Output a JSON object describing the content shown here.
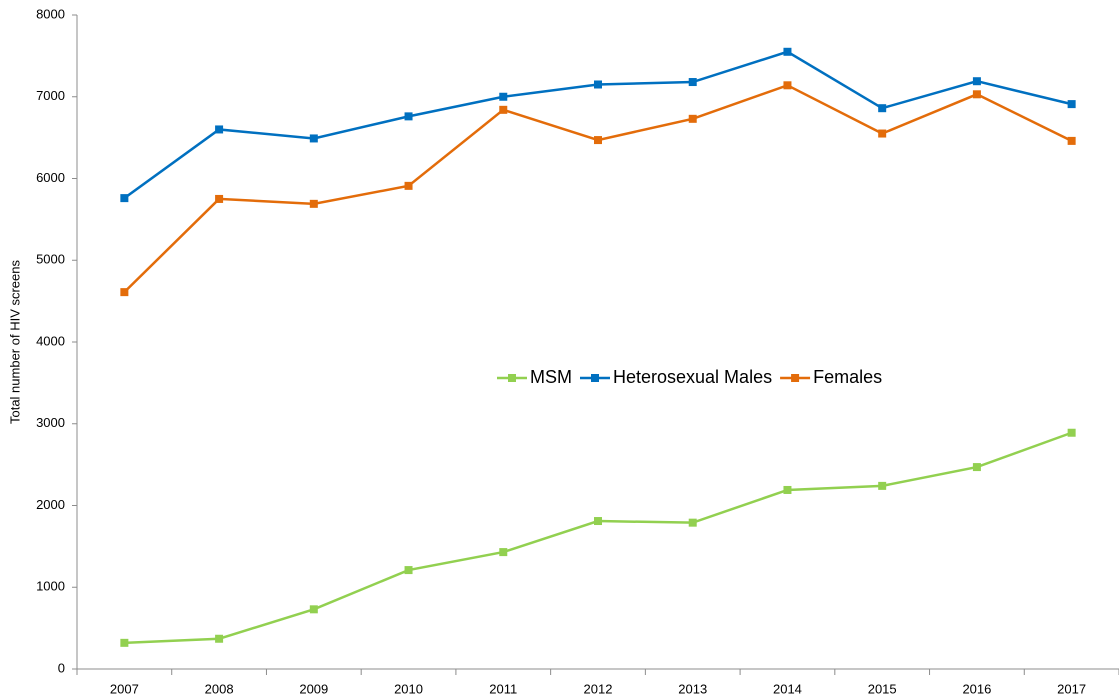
{
  "chart_data": {
    "type": "line",
    "ylabel": "Total number of HIV screens",
    "categories": [
      "2007",
      "2008",
      "2009",
      "2010",
      "2011",
      "2012",
      "2013",
      "2014",
      "2015",
      "2016",
      "2017"
    ],
    "series": [
      {
        "name": "MSM",
        "color": "#92d050",
        "values": [
          320,
          370,
          730,
          1210,
          1430,
          1810,
          1790,
          2190,
          2240,
          2470,
          2890
        ]
      },
      {
        "name": "Heterosexual Males",
        "color": "#0070c0",
        "values": [
          5760,
          6600,
          6490,
          6760,
          7000,
          7150,
          7180,
          7550,
          6860,
          7190,
          6910
        ]
      },
      {
        "name": "Females",
        "color": "#e36c0a",
        "values": [
          4610,
          5750,
          5690,
          5910,
          6840,
          6470,
          6730,
          7140,
          6550,
          7030,
          6460
        ]
      }
    ],
    "ylim": [
      0,
      8000
    ],
    "yticks": [
      0,
      1000,
      2000,
      3000,
      4000,
      5000,
      6000,
      7000,
      8000
    ],
    "grid": false,
    "legend": "center"
  }
}
